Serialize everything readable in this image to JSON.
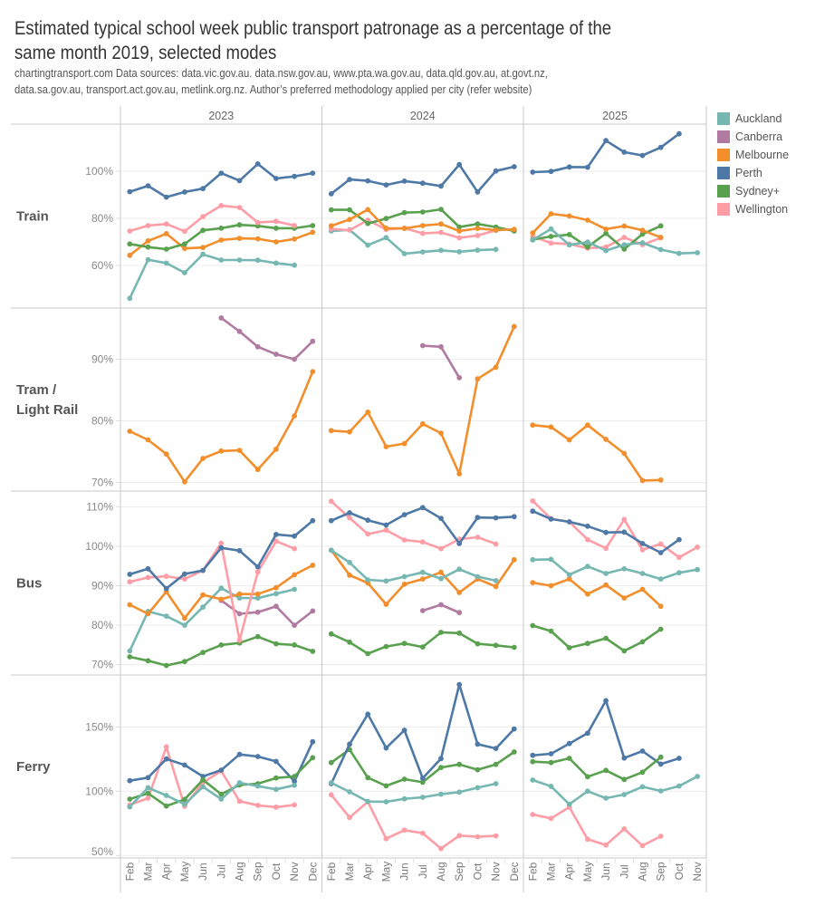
{
  "header": {
    "title_lines": [
      "Estimated typical school week public transport patronage as a percentage of the",
      "same month 2019, selected modes"
    ],
    "subtitle_lines": [
      "chartingtransport.com  Data sources: data.vic.gov.au. data.nsw.gov.au, www.pta.wa.gov.au, data.qld.gov.au, at.govt.nz,",
      "data.sa.gov.au, transport.act.gov.au, metlink.org.nz. Author’s preferred methodology applied per city (refer website)"
    ]
  },
  "chart_data": {
    "type": "line",
    "title": "Estimated typical school week public transport patronage as a percentage of the same month 2019, selected modes",
    "xlabel": "",
    "ylabel": "",
    "grid": true,
    "legend_position": "right",
    "legend": [
      {
        "name": "Auckland",
        "color": "#76B7B2"
      },
      {
        "name": "Canberra",
        "color": "#B07AA1"
      },
      {
        "name": "Melbourne",
        "color": "#F28E2B"
      },
      {
        "name": "Perth",
        "color": "#4E79A7"
      },
      {
        "name": "Sydney+",
        "color": "#59A14F"
      },
      {
        "name": "Wellington",
        "color": "#FF9DA7"
      }
    ],
    "columns": [
      {
        "year": "2023",
        "months": [
          "Feb",
          "Mar",
          "Apr",
          "May",
          "Jun",
          "Jul",
          "Aug",
          "Sep",
          "Oct",
          "Nov",
          "Dec"
        ]
      },
      {
        "year": "2024",
        "months": [
          "Feb",
          "Mar",
          "Apr",
          "May",
          "Jun",
          "Jul",
          "Aug",
          "Sep",
          "Oct",
          "Nov",
          "Dec"
        ]
      },
      {
        "year": "2025",
        "months": [
          "Feb",
          "Mar",
          "Apr",
          "May",
          "Jun",
          "Jul",
          "Aug",
          "Sep",
          "Oct",
          "Nov"
        ]
      }
    ],
    "rows": [
      {
        "mode": "Train",
        "label_lines": [
          "Train"
        ],
        "ylim": [
          41.9,
          120.0
        ],
        "ticks": [
          60,
          80,
          100
        ],
        "series": [
          {
            "city": "Auckland",
            "year": "2023",
            "start": "Feb",
            "values": [
              46.0,
              62.4,
              61.0,
              56.9,
              64.7,
              62.3,
              62.3,
              62.2,
              61.0,
              60.1
            ]
          },
          {
            "city": "Melbourne",
            "year": "2023",
            "start": "Feb",
            "values": [
              64.3,
              70.4,
              73.5,
              67.2,
              67.6,
              70.8,
              71.5,
              71.3,
              70.0,
              71.2,
              74.1
            ]
          },
          {
            "city": "Sydney+",
            "year": "2023",
            "start": "Feb",
            "values": [
              69.1,
              67.8,
              66.9,
              69.1,
              74.9,
              75.8,
              77.2,
              76.8,
              75.8,
              75.8,
              76.9
            ]
          },
          {
            "city": "Wellington",
            "year": "2023",
            "start": "Feb",
            "values": [
              74.6,
              76.9,
              77.6,
              74.5,
              80.7,
              85.4,
              84.6,
              78.2,
              78.7,
              76.9
            ]
          },
          {
            "city": "Perth",
            "year": "2023",
            "start": "Feb",
            "values": [
              91.3,
              93.8,
              89.0,
              91.2,
              92.6,
              99.2,
              96.0,
              103.1,
              96.9,
              97.8,
              99.2
            ]
          },
          {
            "city": "Auckland",
            "year": "2024",
            "start": "Feb",
            "values": [
              74.6,
              75.1,
              68.6,
              71.8,
              65.0,
              65.7,
              66.4,
              65.8,
              66.5,
              66.8
            ]
          },
          {
            "city": "Wellington",
            "year": "2024",
            "start": "Feb",
            "values": [
              75.5,
              75.0,
              79.2,
              75.3,
              75.8,
              73.6,
              74.0,
              71.7,
              72.7,
              74.9
            ]
          },
          {
            "city": "Sydney+",
            "year": "2024",
            "start": "Feb",
            "values": [
              83.6,
              83.6,
              77.8,
              79.9,
              82.4,
              82.7,
              83.8,
              76.3,
              77.6,
              76.3,
              74.6
            ]
          },
          {
            "city": "Melbourne",
            "year": "2024",
            "start": "Feb",
            "values": [
              76.8,
              79.5,
              83.7,
              75.8,
              75.7,
              76.9,
              77.6,
              74.6,
              75.7,
              75.0,
              75.3
            ]
          },
          {
            "city": "Perth",
            "year": "2024",
            "start": "Feb",
            "values": [
              90.4,
              96.5,
              95.9,
              94.2,
              95.8,
              94.9,
              93.7,
              102.8,
              91.2,
              100.1,
              101.9
            ]
          },
          {
            "city": "Wellington",
            "year": "2025",
            "start": "Feb",
            "values": [
              72.3,
              69.5,
              69.1,
              67.3,
              67.8,
              71.9,
              68.8,
              71.7
            ]
          },
          {
            "city": "Sydney+",
            "year": "2025",
            "start": "Feb",
            "values": [
              71.0,
              72.3,
              73.1,
              67.8,
              73.6,
              66.9,
              73.3,
              76.8
            ]
          },
          {
            "city": "Auckland",
            "year": "2025",
            "start": "Feb",
            "values": [
              70.8,
              75.5,
              68.7,
              69.9,
              66.3,
              68.8,
              69.6,
              66.7,
              65.1,
              65.4
            ]
          },
          {
            "city": "Melbourne",
            "year": "2025",
            "start": "Feb",
            "values": [
              73.8,
              81.9,
              81.0,
              79.2,
              75.4,
              76.7,
              74.9,
              71.9
            ]
          },
          {
            "city": "Perth",
            "year": "2025",
            "start": "Feb",
            "values": [
              99.6,
              99.9,
              101.8,
              101.7,
              113.0,
              108.1,
              106.7,
              110.1,
              115.9
            ]
          }
        ]
      },
      {
        "mode": "Tram / Light Rail",
        "label_lines": [
          "Tram /",
          "Light Rail"
        ],
        "ylim": [
          68.6,
          98.3
        ],
        "ticks": [
          70,
          80,
          90
        ],
        "series": [
          {
            "city": "Canberra",
            "year": "2023",
            "start": "Jul",
            "values": [
              96.7,
              94.5,
              92.0,
              90.8,
              90.0,
              92.9
            ]
          },
          {
            "city": "Melbourne",
            "year": "2023",
            "start": "Feb",
            "values": [
              78.3,
              76.9,
              74.6,
              70.1,
              73.9,
              75.1,
              75.2,
              72.1,
              75.4,
              80.8,
              88.0
            ]
          },
          {
            "city": "Canberra",
            "year": "2024",
            "start": "Jul",
            "values": [
              92.2,
              92.0,
              87.0
            ]
          },
          {
            "city": "Melbourne",
            "year": "2024",
            "start": "Feb",
            "values": [
              78.4,
              78.2,
              81.4,
              75.8,
              76.3,
              79.5,
              78.0,
              71.4,
              86.8,
              88.7,
              95.3
            ]
          },
          {
            "city": "Melbourne",
            "year": "2025",
            "start": "Feb",
            "values": [
              79.3,
              79.0,
              76.9,
              79.3,
              77.0,
              74.7,
              70.3,
              70.4
            ]
          }
        ]
      },
      {
        "mode": "Bus",
        "label_lines": [
          "Bus"
        ],
        "ylim": [
          67.4,
          114.0
        ],
        "ticks": [
          70,
          80,
          90,
          100,
          110
        ],
        "series": [
          {
            "city": "Sydney+",
            "year": "2023",
            "start": "Feb",
            "values": [
              72.0,
              71.0,
              69.8,
              70.8,
              73.1,
              75.0,
              75.5,
              77.1,
              75.3,
              75.0,
              73.4
            ]
          },
          {
            "city": "Canberra",
            "year": "2023",
            "start": "Jul",
            "values": [
              86.3,
              82.9,
              83.3,
              84.8,
              80.0,
              83.6
            ]
          },
          {
            "city": "Auckland",
            "year": "2023",
            "start": "Feb",
            "values": [
              73.5,
              83.5,
              82.3,
              80.0,
              84.6,
              89.4,
              86.9,
              86.9,
              88.0,
              89.1
            ]
          },
          {
            "city": "Melbourne",
            "year": "2023",
            "start": "Feb",
            "values": [
              85.2,
              82.9,
              88.5,
              81.8,
              87.7,
              86.6,
              87.9,
              87.9,
              89.5,
              92.8,
              95.2
            ]
          },
          {
            "city": "Wellington",
            "year": "2023",
            "start": "Feb",
            "values": [
              91.0,
              92.1,
              92.4,
              91.7,
              93.9,
              100.8,
              76.2,
              93.5,
              101.3,
              99.4
            ]
          },
          {
            "city": "Perth",
            "year": "2023",
            "start": "Feb",
            "values": [
              92.9,
              94.3,
              89.3,
              93.0,
              93.9,
              99.6,
              98.9,
              94.8,
              103.0,
              102.6,
              106.5
            ]
          },
          {
            "city": "Sydney+",
            "year": "2024",
            "start": "Feb",
            "values": [
              77.8,
              75.7,
              72.8,
              74.6,
              75.4,
              74.5,
              78.2,
              78.0,
              75.3,
              74.9,
              74.4
            ]
          },
          {
            "city": "Canberra",
            "year": "2024",
            "start": "Jul",
            "values": [
              83.7,
              85.2,
              83.2
            ]
          },
          {
            "city": "Melbourne",
            "year": "2024",
            "start": "Feb",
            "values": [
              99.0,
              92.7,
              90.7,
              85.3,
              90.4,
              91.7,
              93.4,
              88.3,
              91.7,
              89.8,
              96.6
            ]
          },
          {
            "city": "Auckland",
            "year": "2024",
            "start": "Feb",
            "values": [
              99.0,
              95.9,
              91.5,
              91.2,
              92.3,
              93.4,
              91.8,
              94.2,
              92.3,
              91.3
            ]
          },
          {
            "city": "Wellington",
            "year": "2024",
            "start": "Feb",
            "values": [
              111.4,
              107.2,
              103.1,
              104.1,
              101.6,
              101.1,
              99.4,
              101.8,
              102.3,
              100.6
            ]
          },
          {
            "city": "Perth",
            "year": "2024",
            "start": "Feb",
            "values": [
              106.5,
              108.5,
              106.6,
              105.4,
              108.0,
              109.8,
              107.1,
              100.7,
              107.3,
              107.2,
              107.5
            ]
          },
          {
            "city": "Sydney+",
            "year": "2025",
            "start": "Feb",
            "values": [
              79.9,
              78.5,
              74.3,
              75.4,
              76.7,
              73.5,
              75.8,
              79.0
            ]
          },
          {
            "city": "Melbourne",
            "year": "2025",
            "start": "Feb",
            "values": [
              90.8,
              90.0,
              91.7,
              87.9,
              90.2,
              86.9,
              89.1,
              84.8
            ]
          },
          {
            "city": "Auckland",
            "year": "2025",
            "start": "Feb",
            "values": [
              96.6,
              96.7,
              92.8,
              94.9,
              93.1,
              94.3,
              93.1,
              91.7,
              93.3,
              94.1
            ]
          },
          {
            "city": "Wellington",
            "year": "2025",
            "start": "Feb",
            "values": [
              111.5,
              107.0,
              106.2,
              101.7,
              99.5,
              106.8,
              99.1,
              100.6,
              97.2,
              99.8
            ]
          },
          {
            "city": "Perth",
            "year": "2025",
            "start": "Feb",
            "values": [
              108.9,
              106.9,
              106.2,
              105.1,
              103.5,
              103.6,
              100.7,
              98.4,
              101.7
            ]
          }
        ]
      },
      {
        "mode": "Ferry",
        "label_lines": [
          "Ferry"
        ],
        "ylim": [
          48.1,
          190.4
        ],
        "ticks": [
          50,
          100,
          150
        ],
        "series": [
          {
            "city": "Wellington",
            "year": "2023",
            "start": "Feb",
            "values": [
              89.4,
              94.6,
              134.5,
              88.3,
              106.8,
              115.7,
              92.3,
              89.0,
              87.6,
              89.4
            ]
          },
          {
            "city": "Perth",
            "year": "2023",
            "start": "Feb",
            "values": [
              108.2,
              110.6,
              125.1,
              120.4,
              111.5,
              116.4,
              128.6,
              127.0,
              123.2,
              107.7,
              138.5
            ]
          },
          {
            "city": "Sydney+",
            "year": "2023",
            "start": "Feb",
            "values": [
              93.9,
              98.4,
              88.5,
              93.7,
              108.9,
              97.7,
              104.9,
              105.9,
              110.3,
              111.5,
              126.1
            ]
          },
          {
            "city": "Auckland",
            "year": "2023",
            "start": "Feb",
            "values": [
              87.8,
              102.8,
              96.7,
              89.9,
              103.5,
              93.9,
              106.6,
              104.0,
              101.4,
              104.7
            ]
          },
          {
            "city": "Wellington",
            "year": "2024",
            "start": "Feb",
            "values": [
              97.2,
              79.6,
              91.8,
              63.1,
              69.7,
              67.4,
              55.4,
              65.5,
              64.6,
              65.3
            ]
          },
          {
            "city": "Sydney+",
            "year": "2024",
            "start": "Feb",
            "values": [
              122.3,
              132.4,
              110.6,
              104.2,
              109.4,
              107.0,
              118.5,
              120.9,
              116.7,
              120.9,
              130.5
            ]
          },
          {
            "city": "Perth",
            "year": "2024",
            "start": "Feb",
            "values": [
              105.9,
              136.6,
              159.9,
              133.6,
              147.4,
              110.1,
              125.4,
              182.9,
              136.6,
              133.3,
              148.4
            ]
          },
          {
            "city": "Auckland",
            "year": "2024",
            "start": "Feb",
            "values": [
              106.6,
              99.5,
              92.0,
              91.8,
              94.1,
              95.3,
              97.7,
              99.3,
              102.8,
              105.9
            ]
          },
          {
            "city": "Wellington",
            "year": "2025",
            "start": "Feb",
            "values": [
              81.9,
              78.9,
              87.6,
              62.7,
              58.2,
              70.7,
              57.7,
              65.0
            ]
          },
          {
            "city": "Auckland",
            "year": "2025",
            "start": "Feb",
            "values": [
              108.7,
              103.8,
              89.9,
              100.0,
              94.6,
              97.4,
              103.5,
              100.2,
              104.0,
              111.5
            ]
          },
          {
            "city": "Perth",
            "year": "2025",
            "start": "Feb",
            "values": [
              127.9,
              129.1,
              137.1,
              145.1,
              170.4,
              125.8,
              131.2,
              121.1,
              125.6
            ]
          },
          {
            "city": "Sydney+",
            "year": "2025",
            "start": "Feb",
            "values": [
              123.0,
              122.3,
              125.6,
              111.3,
              116.2,
              109.2,
              114.8,
              126.5
            ]
          }
        ]
      }
    ]
  }
}
